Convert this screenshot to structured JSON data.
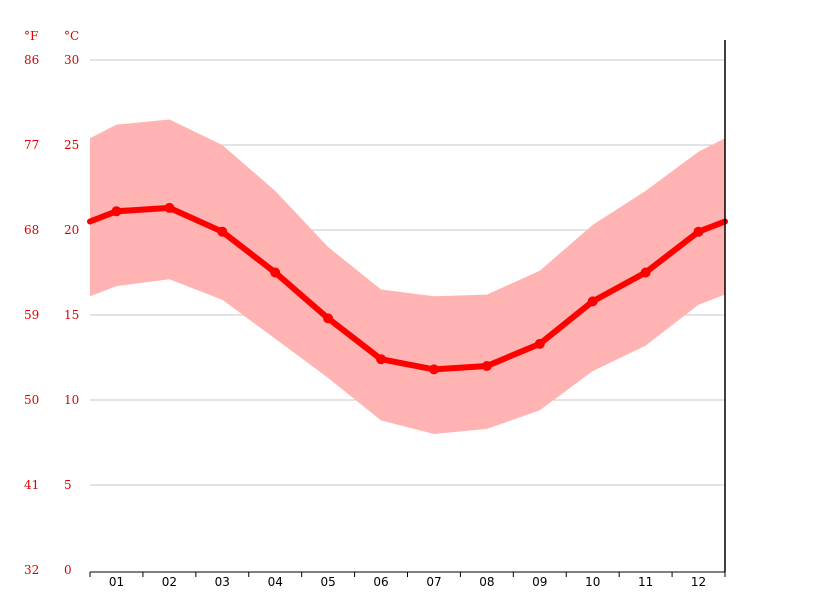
{
  "chart_data": {
    "type": "line",
    "title": "",
    "xlabel": "",
    "unit_f": "°F",
    "unit_c": "°C",
    "categories": [
      "01",
      "02",
      "03",
      "04",
      "05",
      "06",
      "07",
      "08",
      "09",
      "10",
      "11",
      "12"
    ],
    "series": [
      {
        "values": [
          21.1,
          21.3,
          19.9,
          17.5,
          14.8,
          12.4,
          11.8,
          12.0,
          13.3,
          15.8,
          17.5,
          19.9
        ]
      }
    ],
    "band": {
      "upper": [
        26.2,
        26.5,
        25.0,
        22.3,
        19.0,
        16.5,
        16.1,
        16.2,
        17.6,
        20.3,
        22.3,
        24.6
      ],
      "lower": [
        16.7,
        17.1,
        15.9,
        13.6,
        11.3,
        8.8,
        8.0,
        8.3,
        9.4,
        11.7,
        13.2,
        15.6
      ],
      "left_edge": {
        "upper": 25.4,
        "lower": 16.1,
        "mean": 20.5
      },
      "right_edge": {
        "upper": 25.4,
        "lower": 16.2,
        "mean": 20.5
      }
    },
    "ylim": [
      0,
      30
    ],
    "y_ticks_c": [
      "0",
      "5",
      "10",
      "15",
      "20",
      "25",
      "30"
    ],
    "y_ticks_f": [
      "32",
      "41",
      "50",
      "59",
      "68",
      "77",
      "86"
    ],
    "grid": true,
    "colors": {
      "line": "#ff0000",
      "band": "#ffb3b3",
      "axis_text": "#e00000",
      "grid": "#c8c8c8"
    }
  }
}
